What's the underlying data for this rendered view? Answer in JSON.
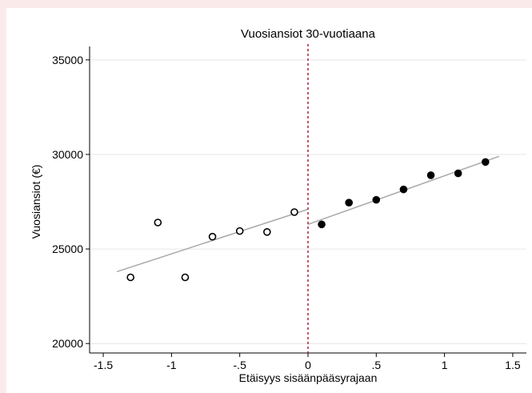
{
  "chart_data": {
    "type": "scatter",
    "title": "Vuosiansiot 30-vuotiaana",
    "xlabel": "Etäisyys sisäänpääsyrajaan",
    "ylabel": "Vuosiansiot (€)",
    "xlim": [
      -1.5,
      1.5
    ],
    "ylim": [
      20000,
      35000
    ],
    "xticks": [
      -1.5,
      -1,
      -0.5,
      0,
      0.5,
      1,
      1.5
    ],
    "xtick_labels": [
      "-1.5",
      "-1",
      "-.5",
      "0",
      ".5",
      "1",
      "1.5"
    ],
    "yticks": [
      20000,
      25000,
      30000,
      35000
    ],
    "ytick_labels": [
      "20000",
      "25000",
      "30000",
      "35000"
    ],
    "grid": "horizontal",
    "cutoff": 0,
    "colors": {
      "cutoff_line": "#b0203a",
      "fit_line": "#a8a8a8",
      "grid": "#e6e6e6",
      "points": "#000000"
    },
    "series": [
      {
        "marker": "hollow-circle",
        "x": [
          -1.3,
          -1.1,
          -0.9,
          -0.7,
          -0.5,
          -0.3,
          -0.1
        ],
        "y": [
          23500,
          26400,
          23500,
          25650,
          25950,
          25900,
          26950
        ]
      },
      {
        "marker": "filled-circle",
        "x": [
          0.1,
          0.3,
          0.5,
          0.7,
          0.9,
          1.1,
          1.3
        ],
        "y": [
          26300,
          27450,
          27600,
          28150,
          28900,
          29000,
          29600
        ]
      }
    ],
    "fit_lines": [
      {
        "x": [
          -1.4,
          0
        ],
        "y": [
          23800,
          27100
        ]
      },
      {
        "x": [
          0,
          1.4
        ],
        "y": [
          26300,
          29900
        ]
      }
    ]
  }
}
